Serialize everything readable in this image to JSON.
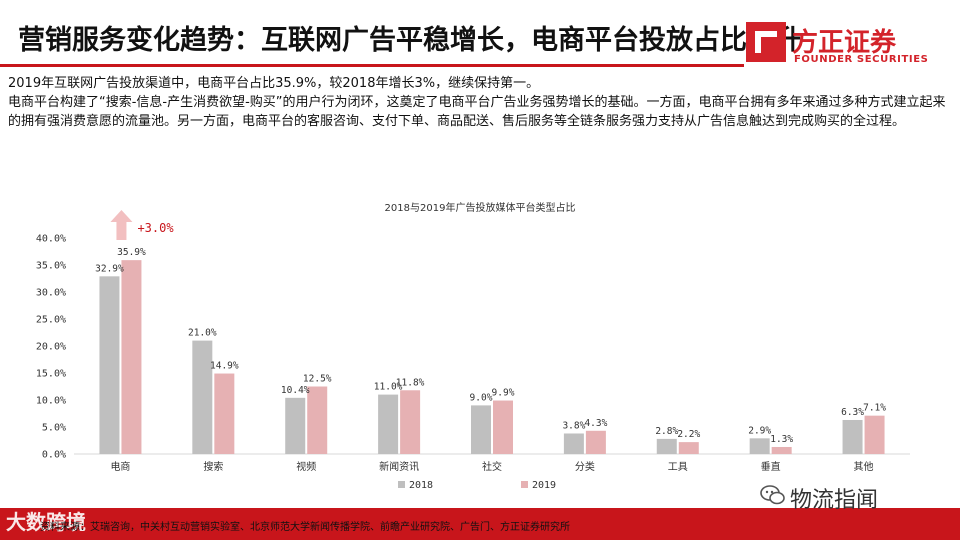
{
  "header": {
    "title": "营销服务变化趋势：互联网广告平稳增长，电商平台投放占比提升",
    "logo_cn": "方正证券",
    "logo_en": "FOUNDER SECURITIES"
  },
  "body_text": {
    "line1": "2019年互联网广告投放渠道中，电商平台占比35.9%，较2018年增长3%，继续保持第一。",
    "line2": "电商平台构建了“搜索-信息-产生消费欲望-购买”的用户行为闭环，这奠定了电商平台广告业务强势增长的基础。一方面，电商平台拥有多年来通过多种方式建立起来的拥有强消费意愿的流量池。另一方面，电商平台的客服咨询、支付下单、商品配送、售后服务等全链条服务强力支持从广告信息触达到完成购买的全过程。"
  },
  "chart_data": {
    "type": "bar",
    "title": "2018与2019年广告投放媒体平台类型占比",
    "categories": [
      "电商",
      "搜索",
      "视频",
      "新闻资讯",
      "社交",
      "分类",
      "工具",
      "垂直",
      "其他"
    ],
    "series": [
      {
        "name": "2018",
        "values": [
          32.9,
          21.0,
          10.4,
          11.0,
          9.0,
          3.8,
          2.8,
          2.9,
          6.3
        ],
        "labels": [
          "32.9%",
          "21.0%",
          "10.4%",
          "11.0%",
          "9.0%",
          "3.8%",
          "2.8%",
          "2.9%",
          "6.3%"
        ]
      },
      {
        "name": "2019",
        "values": [
          35.9,
          14.9,
          12.5,
          11.8,
          9.9,
          4.3,
          2.2,
          1.3,
          7.1
        ],
        "labels": [
          "35.9%",
          "14.9%",
          "12.5%",
          "11.8%",
          "9.9%",
          "4.3%",
          "2.2%",
          "1.3%",
          "7.1%"
        ]
      }
    ],
    "ylim": [
      0,
      40
    ],
    "yticks": [
      "0.0%",
      "5.0%",
      "10.0%",
      "15.0%",
      "20.0%",
      "25.0%",
      "30.0%",
      "35.0%",
      "40.0%"
    ],
    "annotation": "+3.0%",
    "legend": "bottom",
    "colors": {
      "2018": "#bfbfbf",
      "2019": "#e6b1b3",
      "arrow": "#f2bfc0",
      "annotation": "#c8151b"
    }
  },
  "footer": {
    "source": "资料来源：艾瑞咨询，中关村互动营销实验室、北京师范大学新闻传播学院、前瞻产业研究院、广告门、方正证券研究所",
    "watermark_left": "大数跨境",
    "watermark_right": "物流指闻"
  }
}
